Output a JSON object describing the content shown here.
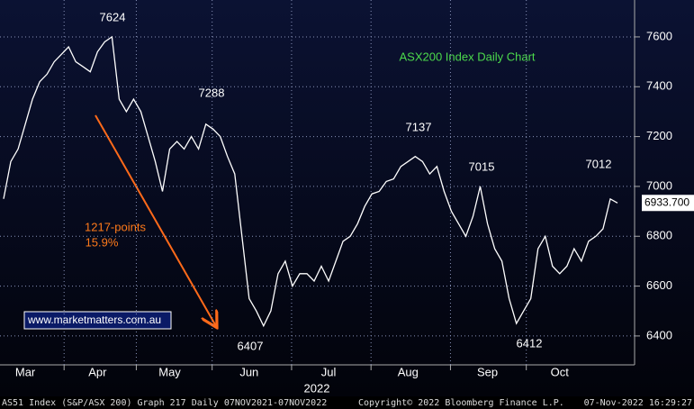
{
  "chart_data": {
    "type": "line",
    "title": "ASX200 Index Daily Chart",
    "categories": [
      null,
      null,
      null,
      "Mar",
      null,
      null,
      null,
      null,
      null,
      null,
      null,
      null,
      null,
      "Apr",
      null,
      null,
      null,
      null,
      null,
      null,
      null,
      null,
      null,
      "May",
      null,
      null,
      null,
      null,
      null,
      null,
      null,
      null,
      null,
      null,
      "Jun",
      null,
      null,
      null,
      null,
      null,
      null,
      null,
      null,
      null,
      null,
      "Jul",
      null,
      null,
      null,
      null,
      null,
      null,
      null,
      null,
      null,
      null,
      "Aug",
      null,
      null,
      null,
      null,
      null,
      null,
      null,
      null,
      null,
      null,
      "Sep",
      null,
      null,
      null,
      null,
      null,
      null,
      null,
      null,
      null,
      "Oct",
      null,
      null,
      null,
      null,
      null,
      null,
      null,
      null
    ],
    "x_label": "2022",
    "series": [
      {
        "name": "AS51 Index",
        "color": "#ffffff",
        "values": [
          6950,
          7100,
          7150,
          7250,
          7350,
          7420,
          7450,
          7500,
          7530,
          7560,
          7500,
          7480,
          7460,
          7540,
          7580,
          7600,
          7350,
          7300,
          7350,
          7300,
          7200,
          7100,
          6980,
          7150,
          7180,
          7150,
          7200,
          7150,
          7250,
          7230,
          7200,
          7120,
          7050,
          6800,
          6550,
          6500,
          6440,
          6500,
          6650,
          6700,
          6600,
          6650,
          6650,
          6620,
          6680,
          6620,
          6700,
          6780,
          6800,
          6850,
          6920,
          6970,
          6980,
          7020,
          7030,
          7080,
          7100,
          7120,
          7100,
          7050,
          7080,
          6980,
          6900,
          6850,
          6800,
          6880,
          7000,
          6850,
          6750,
          6700,
          6550,
          6450,
          6500,
          6550,
          6750,
          6800,
          6680,
          6650,
          6680,
          6750,
          6700,
          6780,
          6800,
          6830,
          6950,
          6933.7
        ]
      }
    ],
    "ylim": [
      6284,
      7748
    ],
    "yticks": [
      6400,
      6600,
      6800,
      7000,
      7200,
      7400,
      7600
    ],
    "grid": true,
    "last_price": {
      "value": 6933.7,
      "label": "6933.700"
    },
    "annotations": [
      "7624",
      "7288",
      "6407",
      "7137",
      "7015",
      "6412",
      "7012",
      "1217-points",
      "15.9%"
    ],
    "website": "www.marketmatters.com.au",
    "footer": [
      "AS51 Index (S&P/ASX 200) Graph 217  Daily 07NOV2021-07NOV2022",
      "Copyright© 2022 Bloomberg Finance L.P.",
      "07-Nov-2022 16:29:27"
    ]
  }
}
